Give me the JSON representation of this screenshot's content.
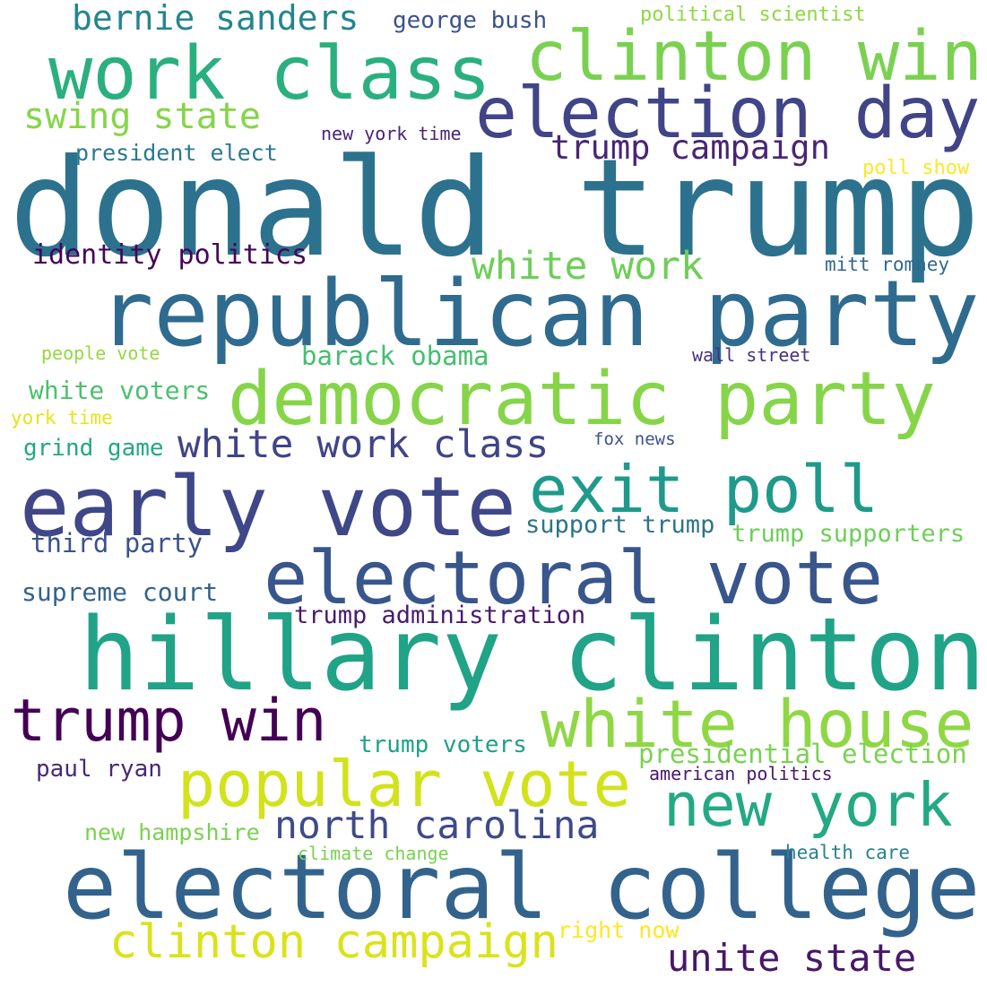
{
  "words": [
    {
      "text": "donald trump",
      "color": "#2c728e"
    },
    {
      "text": "hillary clinton",
      "color": "#20a386"
    },
    {
      "text": "electoral college",
      "color": "#33638d"
    },
    {
      "text": "republican party",
      "color": "#2f6b8e"
    },
    {
      "text": "democratic party",
      "color": "#86d549"
    },
    {
      "text": "early vote",
      "color": "#3f4788"
    },
    {
      "text": "electoral vote",
      "color": "#39568c"
    },
    {
      "text": "work class",
      "color": "#2ab07f"
    },
    {
      "text": "clinton win",
      "color": "#7ad151"
    },
    {
      "text": "election day",
      "color": "#414487"
    },
    {
      "text": "exit poll",
      "color": "#1f9a8a"
    },
    {
      "text": "white house",
      "color": "#8fd744"
    },
    {
      "text": "popular vote",
      "color": "#d2e21b"
    },
    {
      "text": "trump win",
      "color": "#440154"
    },
    {
      "text": "new york",
      "color": "#23a983"
    },
    {
      "text": "clinton campaign",
      "color": "#dae319"
    },
    {
      "text": "north carolina",
      "color": "#3e4a89"
    },
    {
      "text": "white work class",
      "color": "#414487"
    },
    {
      "text": "unite state",
      "color": "#481769"
    },
    {
      "text": "white work",
      "color": "#6ece58"
    },
    {
      "text": "bernie sanders",
      "color": "#25858e"
    },
    {
      "text": "swing state",
      "color": "#86d549"
    },
    {
      "text": "trump campaign",
      "color": "#482576"
    },
    {
      "text": "trump administration",
      "color": "#481a6c"
    },
    {
      "text": "presidential election",
      "color": "#7ad151"
    },
    {
      "text": "identity politics",
      "color": "#450559"
    },
    {
      "text": "barack obama",
      "color": "#44bf70"
    },
    {
      "text": "white voters",
      "color": "#4ac16d"
    },
    {
      "text": "support trump",
      "color": "#2c728e"
    },
    {
      "text": "trump supporters",
      "color": "#6ece58"
    },
    {
      "text": "third party",
      "color": "#3b528b"
    },
    {
      "text": "supreme court",
      "color": "#33638d"
    },
    {
      "text": "trump voters",
      "color": "#1fa187"
    },
    {
      "text": "paul ryan",
      "color": "#482878"
    },
    {
      "text": "new hampshire",
      "color": "#7ad151"
    },
    {
      "text": "george bush",
      "color": "#3b528b"
    },
    {
      "text": "grind game",
      "color": "#22a884"
    },
    {
      "text": "political scientist",
      "color": "#8fd744"
    },
    {
      "text": "president elect",
      "color": "#2a788e"
    },
    {
      "text": "new york time",
      "color": "#482475"
    },
    {
      "text": "poll show",
      "color": "#fde725"
    },
    {
      "text": "mitt romney",
      "color": "#31688e"
    },
    {
      "text": "people vote",
      "color": "#95d840"
    },
    {
      "text": "wall street",
      "color": "#46327e"
    },
    {
      "text": "york time",
      "color": "#e5e419"
    },
    {
      "text": "fox news",
      "color": "#3b528b"
    },
    {
      "text": "american politics",
      "color": "#48186a"
    },
    {
      "text": "climate change",
      "color": "#7ad151"
    },
    {
      "text": "health care",
      "color": "#26828e"
    },
    {
      "text": "right now",
      "color": "#fde725"
    }
  ]
}
